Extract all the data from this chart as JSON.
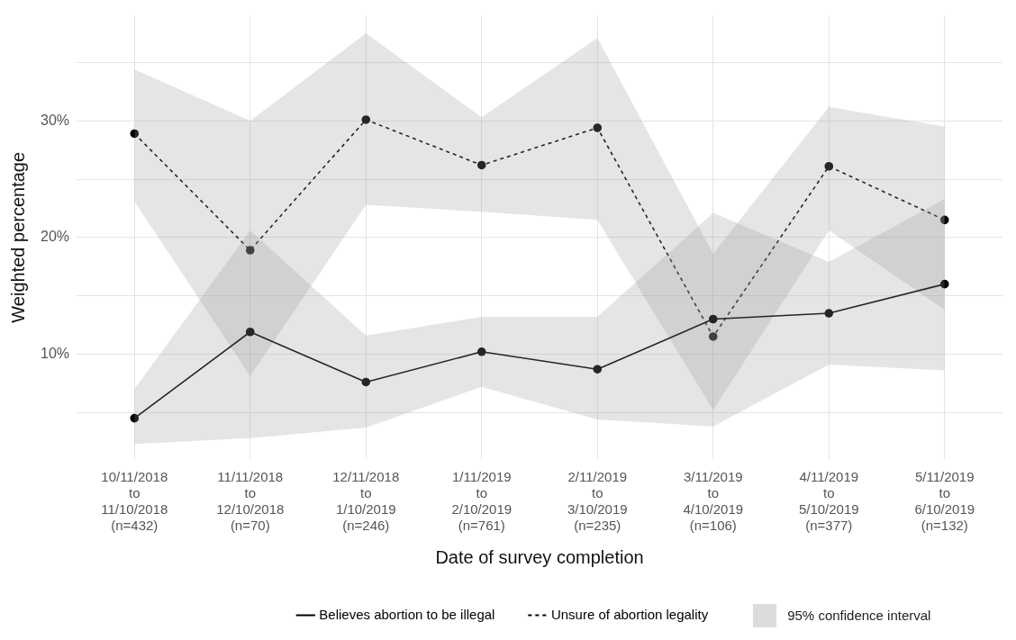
{
  "chart_data": {
    "type": "line",
    "xlabel": "Date of survey completion",
    "ylabel": "Weighted percentage",
    "categories": [
      "10/11/2018\nto\n11/10/2018\n(n=432)",
      "11/11/2018\nto\n12/10/2018\n(n=70)",
      "12/11/2018\nto\n1/10/2019\n(n=246)",
      "1/11/2019\nto\n2/10/2019\n(n=761)",
      "2/11/2019\nto\n3/10/2019\n(n=235)",
      "3/11/2019\nto\n4/10/2019\n(n=106)",
      "4/11/2019\nto\n5/10/2019\n(n=377)",
      "5/11/2019\nto\n6/10/2019\n(n=132)"
    ],
    "series": [
      {
        "name": "Believes abortion to be illegal",
        "color": "#000000",
        "line_style": "solid",
        "values": [
          4.5,
          11.9,
          7.6,
          10.2,
          8.7,
          13.0,
          13.5,
          16.0
        ],
        "lower": [
          2.3,
          2.8,
          3.7,
          7.2,
          4.4,
          3.8,
          9.1,
          8.6
        ],
        "upper": [
          7.0,
          20.6,
          11.6,
          13.2,
          13.2,
          22.1,
          17.9,
          23.3
        ]
      },
      {
        "name": "Unsure of abortion legality",
        "color": "#000000",
        "line_style": "dashed",
        "values": [
          28.9,
          18.9,
          30.1,
          26.2,
          29.4,
          11.5,
          26.1,
          21.5
        ],
        "lower": [
          23.1,
          8.1,
          22.8,
          22.2,
          21.5,
          5.2,
          20.6,
          13.8
        ],
        "upper": [
          34.4,
          30.0,
          37.5,
          30.3,
          37.1,
          18.6,
          31.2,
          29.5
        ]
      }
    ],
    "annotations": [
      "95% confidence interval"
    ],
    "ylim": [
      1,
      39
    ],
    "yticks": [
      {
        "value": 5,
        "label": null
      },
      {
        "value": 10,
        "label": "10%"
      },
      {
        "value": 15,
        "label": null
      },
      {
        "value": 20,
        "label": "20%"
      },
      {
        "value": 25,
        "label": null
      },
      {
        "value": 30,
        "label": "30%"
      },
      {
        "value": 35,
        "label": null
      }
    ],
    "grid": true,
    "legend": "bottom",
    "marker": "circle"
  }
}
